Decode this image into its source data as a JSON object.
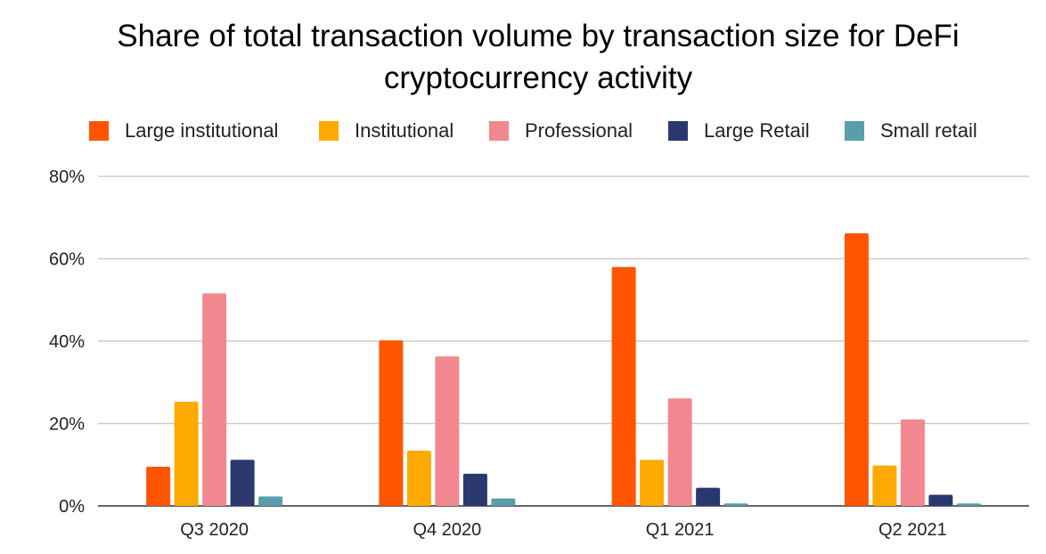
{
  "chart_data": {
    "type": "bar",
    "title_lines": [
      "Share of total transaction volume by transaction size for DeFi",
      "cryptocurrency activity"
    ],
    "categories": [
      "Q3 2020",
      "Q4 2020",
      "Q1 2021",
      "Q2 2021"
    ],
    "series": [
      {
        "name": "Large institutional",
        "color": "#ff5500",
        "values": [
          9.5,
          40.2,
          58.0,
          66.2
        ]
      },
      {
        "name": "Institutional",
        "color": "#ffaa00",
        "values": [
          25.3,
          13.4,
          11.2,
          9.8
        ]
      },
      {
        "name": "Professional",
        "color": "#f2888f",
        "values": [
          51.6,
          36.3,
          26.1,
          21.0
        ]
      },
      {
        "name": "Large Retail",
        "color": "#2b3870",
        "values": [
          11.2,
          7.8,
          4.4,
          2.7
        ]
      },
      {
        "name": "Small retail",
        "color": "#5a9eab",
        "values": [
          2.3,
          1.8,
          0.6,
          0.6
        ]
      }
    ],
    "ylim": [
      0,
      80
    ],
    "yticks": [
      0,
      20,
      40,
      60,
      80
    ],
    "ytick_labels": [
      "0%",
      "20%",
      "40%",
      "60%",
      "80%"
    ],
    "legend_position": "top",
    "grid": true
  }
}
